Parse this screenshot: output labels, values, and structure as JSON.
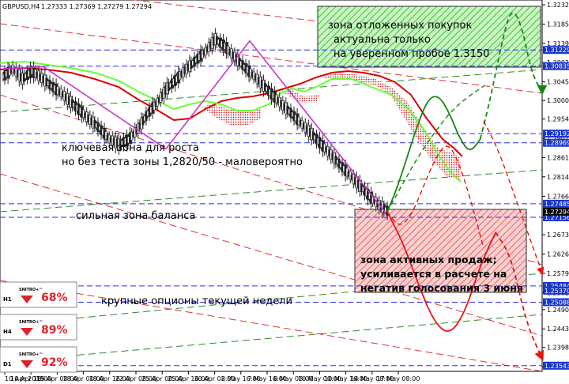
{
  "header": {
    "symbol": "GBPUSD,H4",
    "ohlc": "1.27333 1.27369 1.27279 1.27294"
  },
  "annotations": {
    "buy_zone": [
      "зона отложенных покупок",
      "актуальна только",
      "на уверенном пробое 1.3150"
    ],
    "key_zone": [
      "ключевая зона для роста",
      "но без теста зоны 1,2820/50 - маловероятно"
    ],
    "balance_zone": "сильная зона баланса",
    "sell_zone": [
      "зона активных продаж;",
      "усиливается в расчете на",
      "негатив голосования 3 июня"
    ],
    "options": "крупные опционы текущей недели"
  },
  "badges": [
    {
      "brand": "SNITRO+™",
      "timeframe": "H1",
      "percent": "68%"
    },
    {
      "brand": "SNITRO+™",
      "timeframe": "H4",
      "percent": "89%"
    },
    {
      "brand": "SNITRO+™",
      "timeframe": "D1",
      "percent": "92%"
    }
  ],
  "colors": {
    "dashed_blue": "#2a2aee",
    "ichimoku_green": "#66ff33",
    "ichimoku_red": "#dd0000",
    "wave_purple": "#cc33cc",
    "forecast_green": "#118811",
    "forecast_red": "#ee1111",
    "channel_red": "#dd3333",
    "channel_green": "#338833",
    "buy_zone_fill": "#88ee88",
    "sell_zone_fill": "#ee8888",
    "price_label_bg": "#1a36cc",
    "current_price_bg": "#000000"
  },
  "chart_data": {
    "type": "line",
    "instrument": "GBPUSD",
    "timeframe": "H4",
    "x_tick_labels": [
      "10 Apr 2019",
      "10 Apr 16:00",
      "15 Apr 08:00",
      "18 Apr 00:00",
      "18 Apr 16:00",
      "22 Apr 08:00",
      "25 Apr 00:00",
      "25 Apr 16:00",
      "30 Apr 08:00",
      "2 May 16:00",
      "7 May 16:00",
      "8 May 08:00",
      "10 May 00:00",
      "10 May 16:00",
      "14 May 08:00",
      "17 May 08:00"
    ],
    "y_tick_labels": [
      "1.32328",
      "1.31859",
      "1.31390",
      "1.30921",
      "1.30452",
      "1.30000",
      "1.29548",
      "1.29079",
      "1.28610",
      "1.28141",
      "1.27668",
      "1.27156",
      "1.26730",
      "1.26261",
      "1.25792",
      "1.25323",
      "1.24908",
      "1.24439",
      "1.23988",
      "1.23519"
    ],
    "ylim": [
      1.2352,
      1.3233
    ],
    "level_labels": [
      "1.31229",
      "1.30835",
      "1.29192",
      "1.28969",
      "1.27485",
      "1.27296",
      "1.27156",
      "1.25484",
      "1.25370",
      "1.25088",
      "1.23543"
    ],
    "current_price": 1.27294,
    "levels": [
      1.31229,
      1.30835,
      1.29192,
      1.28969,
      1.27485,
      1.27156,
      1.25484,
      1.25088,
      1.23543
    ],
    "price_path": [
      1.3058,
      1.3077,
      1.3053,
      1.3071,
      1.3055,
      1.3035,
      1.3018,
      1.2996,
      1.2975,
      1.2953,
      1.2932,
      1.2906,
      1.2894,
      1.2904,
      1.2932,
      1.2968,
      1.2996,
      1.303,
      1.3052,
      1.3077,
      1.3098,
      1.312,
      1.3149,
      1.3132,
      1.3106,
      1.3082,
      1.306,
      1.3036,
      1.3012,
      1.2988,
      1.2966,
      1.2942,
      1.2918,
      1.2893,
      1.2868,
      1.2842,
      1.2817,
      1.2792,
      1.2767,
      1.2745,
      1.2729
    ],
    "wave": [
      1.3077,
      1.3082,
      1.2882,
      1.3145,
      1.2726
    ],
    "forecast_green": [
      1.2729,
      1.279,
      1.2868,
      1.2945,
      1.3006,
      1.3012,
      1.2971,
      1.2908,
      1.2872,
      1.2905,
      1.3005,
      1.313,
      1.3228,
      1.3185,
      1.3065,
      1.302
    ],
    "forecast_red": [
      1.2729,
      1.2655,
      1.2553,
      1.2462,
      1.2428,
      1.2482,
      1.2598,
      1.2679,
      1.262,
      1.2455,
      1.2372
    ]
  }
}
